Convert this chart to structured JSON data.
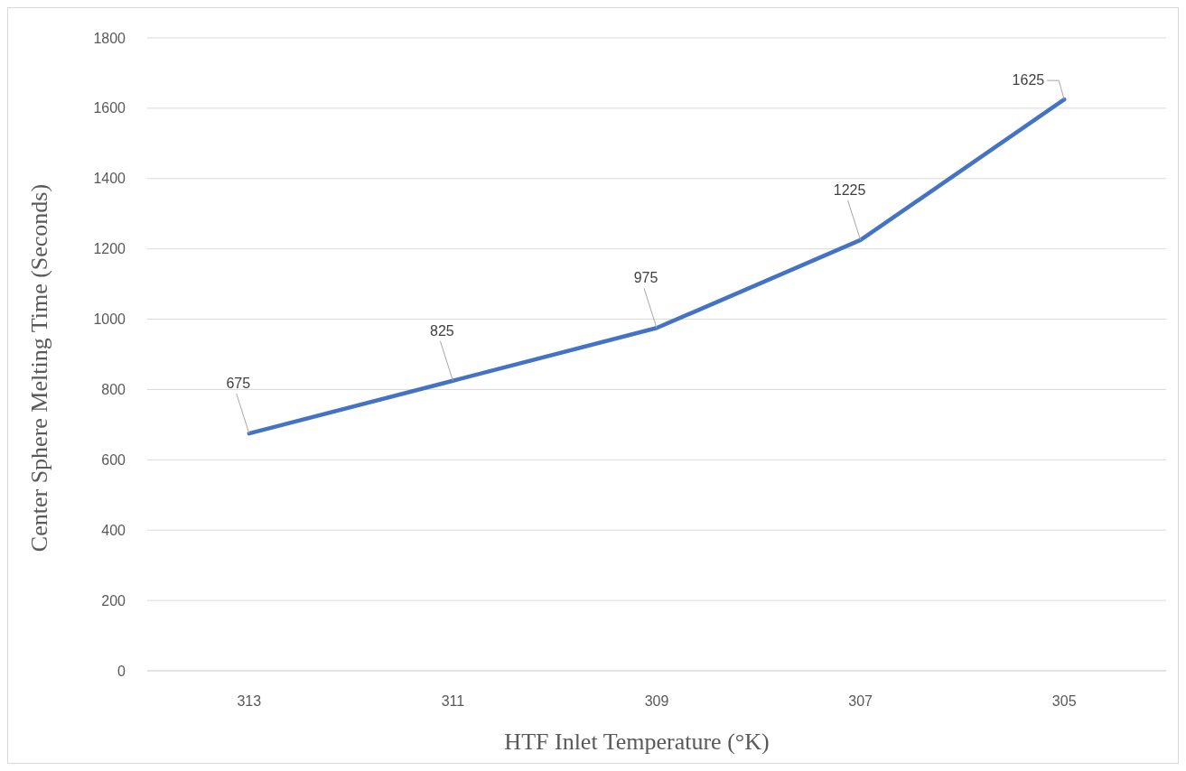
{
  "chart_data": {
    "type": "line",
    "categories": [
      "313",
      "311",
      "309",
      "307",
      "305"
    ],
    "series": [
      {
        "color": "#4472c4",
        "values": [
          675,
          825,
          975,
          1225,
          1625
        ]
      }
    ],
    "xlabel": "HTF Inlet Temperature (°K)",
    "ylabel": "Center Sphere Melting Time (Seconds)",
    "ylim": [
      0,
      1800
    ],
    "yticks": [
      0,
      200,
      400,
      600,
      800,
      1000,
      1200,
      1400,
      1600,
      1800
    ],
    "grid": "y",
    "data_labels": true,
    "marker": "none",
    "line_style": "solid"
  }
}
